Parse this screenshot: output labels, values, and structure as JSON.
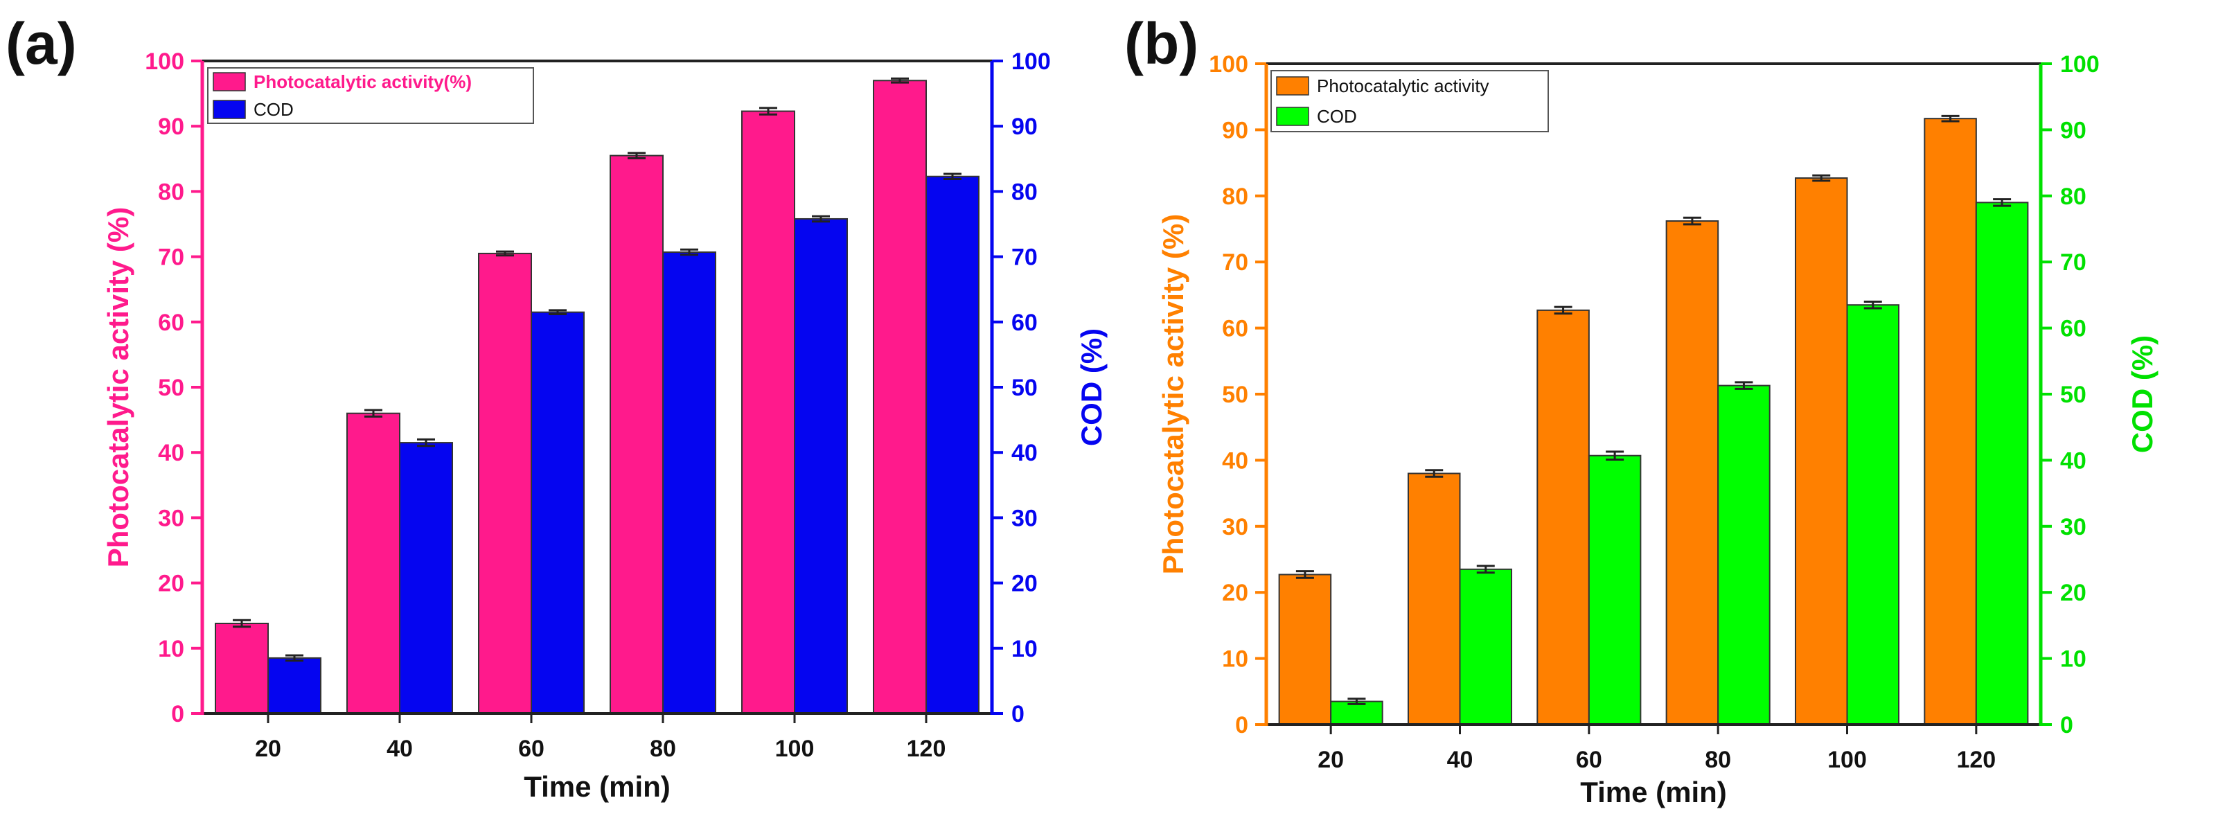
{
  "chart_data": [
    {
      "panel_label": "(a)",
      "type": "bar",
      "categories": [
        "20",
        "40",
        "60",
        "80",
        "100",
        "120"
      ],
      "series": [
        {
          "name": "Photocatalytic activity(%)",
          "color": "#ff1a8c",
          "values": [
            13.8,
            46.0,
            70.5,
            85.5,
            92.3,
            97.0
          ],
          "errors": [
            0.5,
            0.5,
            0.3,
            0.4,
            0.5,
            0.3
          ]
        },
        {
          "name": "COD",
          "color": "#0505f0",
          "values": [
            8.5,
            41.5,
            61.5,
            70.7,
            75.8,
            82.3
          ],
          "errors": [
            0.4,
            0.5,
            0.3,
            0.4,
            0.4,
            0.4
          ]
        }
      ],
      "xlabel": "Time (min)",
      "ylabel": "Photocatalytic activity (%)",
      "y2label": "COD (%)",
      "ylim": [
        0,
        100
      ],
      "yticks": [
        "0",
        "10",
        "20",
        "30",
        "40",
        "50",
        "60",
        "70",
        "80",
        "90",
        "100"
      ],
      "left_axis_color": "#ff1a8c",
      "right_axis_color": "#0505f0",
      "legend_text_colors": [
        "#ff1a8c",
        "#111111"
      ],
      "legend_position": "top-left",
      "grid": false
    },
    {
      "panel_label": "(b)",
      "type": "bar",
      "categories": [
        "20",
        "40",
        "60",
        "80",
        "100",
        "120"
      ],
      "series": [
        {
          "name": "Photocatalytic activity",
          "color": "#ff8000",
          "values": [
            22.7,
            38.0,
            62.7,
            76.2,
            82.7,
            91.7
          ],
          "errors": [
            0.5,
            0.5,
            0.5,
            0.5,
            0.4,
            0.4
          ]
        },
        {
          "name": "COD",
          "color": "#00ff00",
          "values": [
            3.5,
            23.5,
            40.7,
            51.3,
            63.5,
            79.0
          ],
          "errors": [
            0.4,
            0.5,
            0.6,
            0.5,
            0.5,
            0.5
          ]
        }
      ],
      "xlabel": "Time (min)",
      "ylabel": "Photocatalytic activity (%)",
      "y2label": "COD (%)",
      "ylim": [
        0,
        100
      ],
      "yticks": [
        "0",
        "10",
        "20",
        "30",
        "40",
        "50",
        "60",
        "70",
        "80",
        "90",
        "100"
      ],
      "left_axis_color": "#ff8000",
      "right_axis_color": "#00e000",
      "legend_text_colors": [
        "#111111",
        "#111111"
      ],
      "legend_position": "top-left",
      "grid": false
    }
  ]
}
